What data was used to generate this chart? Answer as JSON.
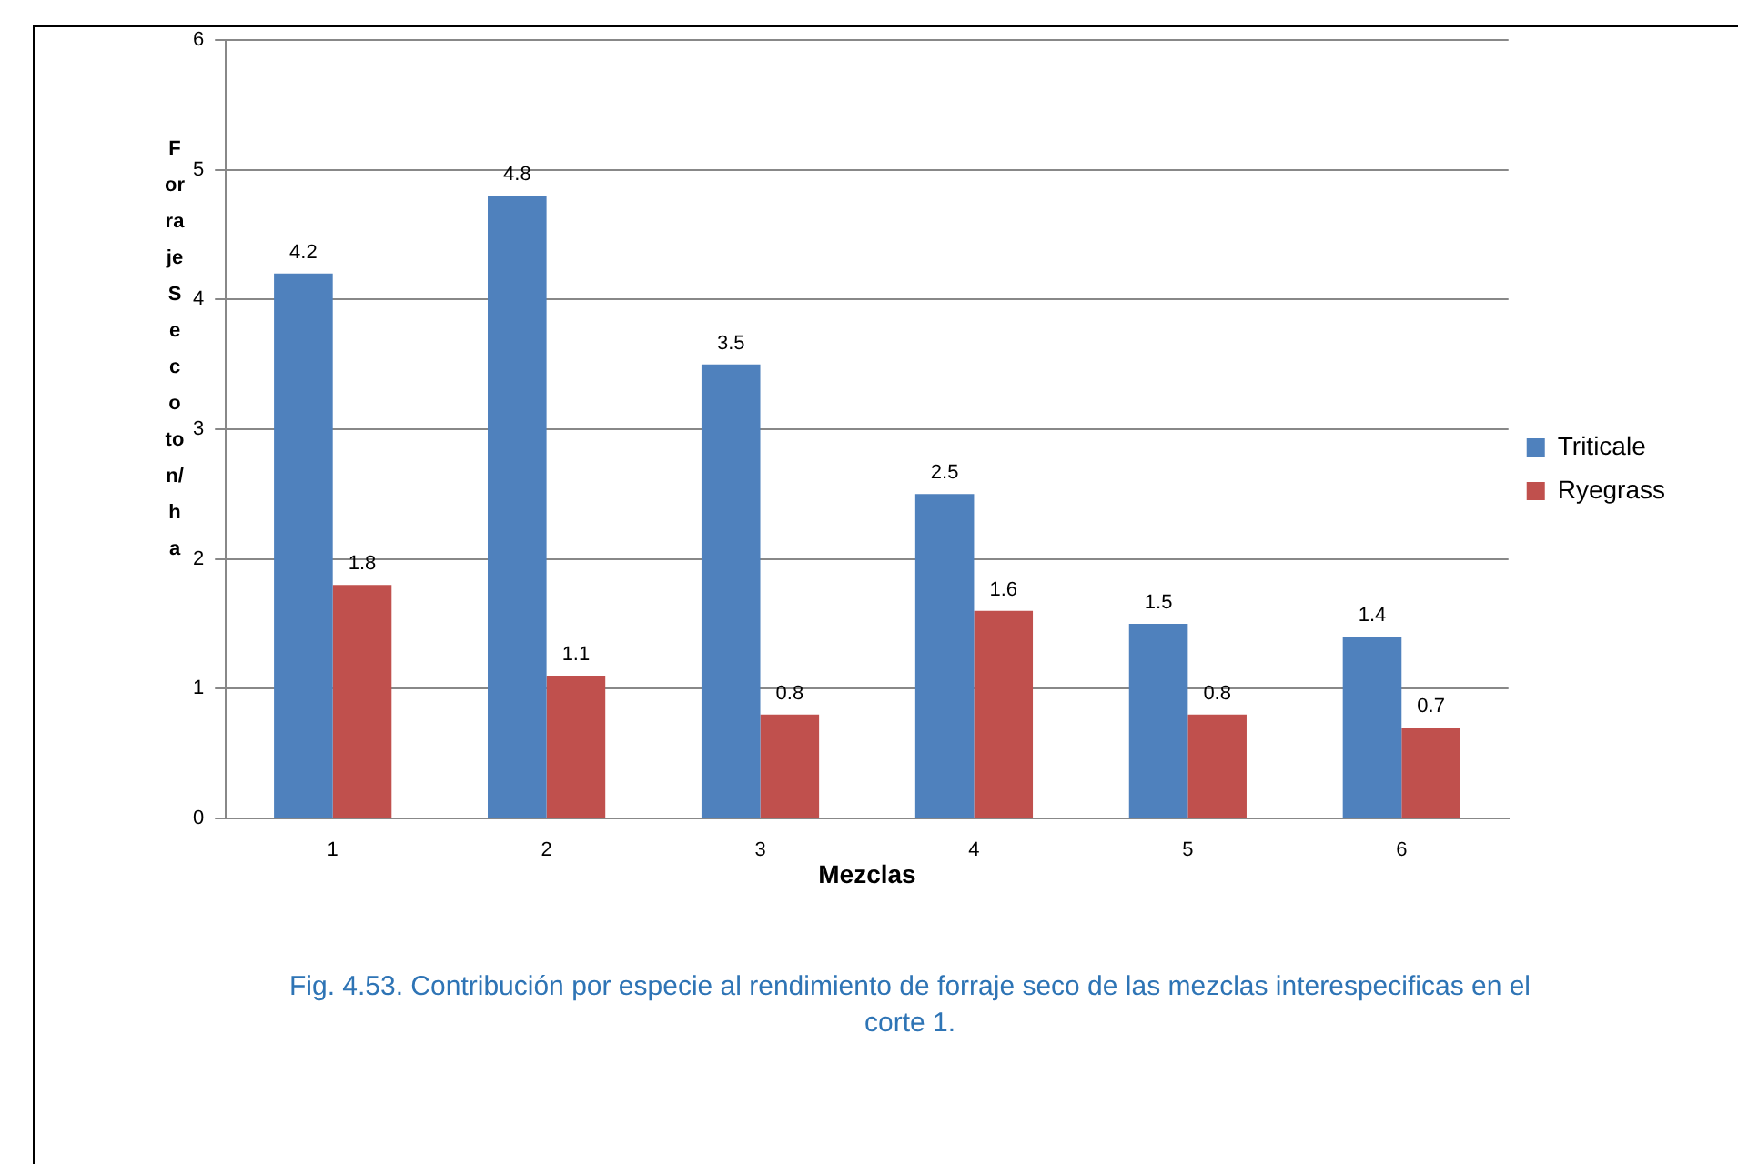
{
  "chart_data": {
    "type": "bar",
    "xlabel": "Mezclas",
    "ylabel": "Forraje Seco ton/ha",
    "categories": [
      "1",
      "2",
      "3",
      "4",
      "5",
      "6"
    ],
    "series": [
      {
        "name": "Triticale",
        "color": "#4f81bd",
        "values": [
          4.2,
          4.8,
          3.5,
          2.5,
          1.5,
          1.4
        ]
      },
      {
        "name": "Ryegrass",
        "color": "#c0504d",
        "values": [
          1.8,
          1.1,
          0.8,
          1.6,
          0.8,
          0.7
        ]
      }
    ],
    "ylim": [
      0,
      6
    ],
    "yticks": [
      0,
      1,
      2,
      3,
      4,
      5,
      6
    ],
    "grid": "y",
    "legend": "right",
    "data_labels": true,
    "annotations": [
      "Fig. 4.53. Contribución por especie al rendimiento de forraje seco de las mezclas interespecificas  en el corte 1."
    ]
  }
}
